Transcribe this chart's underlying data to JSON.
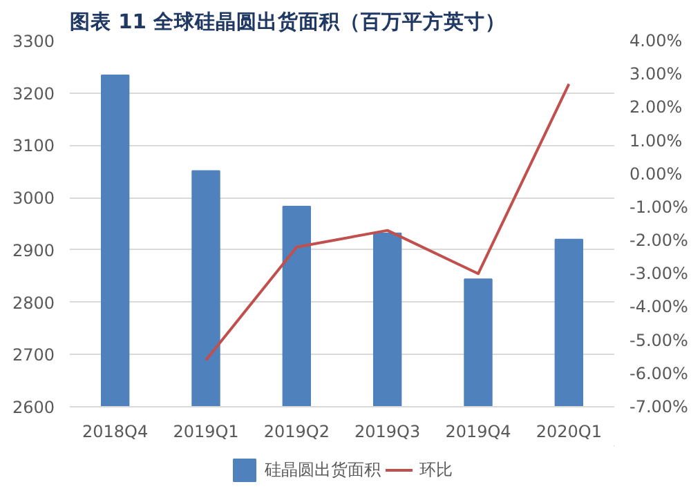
{
  "chart_data": {
    "type": "bar",
    "title": "图表 11 全球硅晶圆出货面积（百万平方英寸）",
    "categories": [
      "2018Q4",
      "2019Q1",
      "2019Q2",
      "2019Q3",
      "2019Q4",
      "2020Q1"
    ],
    "series": [
      {
        "name": "硅晶圆出货面积",
        "color": "#4f81bd",
        "values": [
          3234,
          3051,
          2983,
          2932,
          2844,
          2920
        ]
      },
      {
        "name": "环比",
        "type": "line",
        "axis": "y2",
        "color": "#c0504d",
        "values": [
          null,
          -5.6,
          -2.2,
          -1.7,
          -3.0,
          2.7
        ]
      }
    ],
    "ylim": [
      2600,
      3300
    ],
    "yticks": [
      2600,
      2700,
      2800,
      2900,
      3000,
      3100,
      3200,
      3300
    ],
    "y2lim": [
      -7,
      4
    ],
    "y2ticks": [
      {
        "value": -7,
        "label": "-7.00%"
      },
      {
        "value": -6,
        "label": "-6.00%"
      },
      {
        "value": -5,
        "label": "-5.00%"
      },
      {
        "value": -4,
        "label": "-4.00%"
      },
      {
        "value": -3,
        "label": "-3.00%"
      },
      {
        "value": -2,
        "label": "-2.00%"
      },
      {
        "value": -1,
        "label": "-1.00%"
      },
      {
        "value": 0,
        "label": "0.00%"
      },
      {
        "value": 1,
        "label": "1.00%"
      },
      {
        "value": 2,
        "label": "2.00%"
      },
      {
        "value": 3,
        "label": "3.00%"
      },
      {
        "value": 4,
        "label": "4.00%"
      }
    ],
    "grid": "y",
    "legend": "bottom",
    "marker": "none"
  }
}
